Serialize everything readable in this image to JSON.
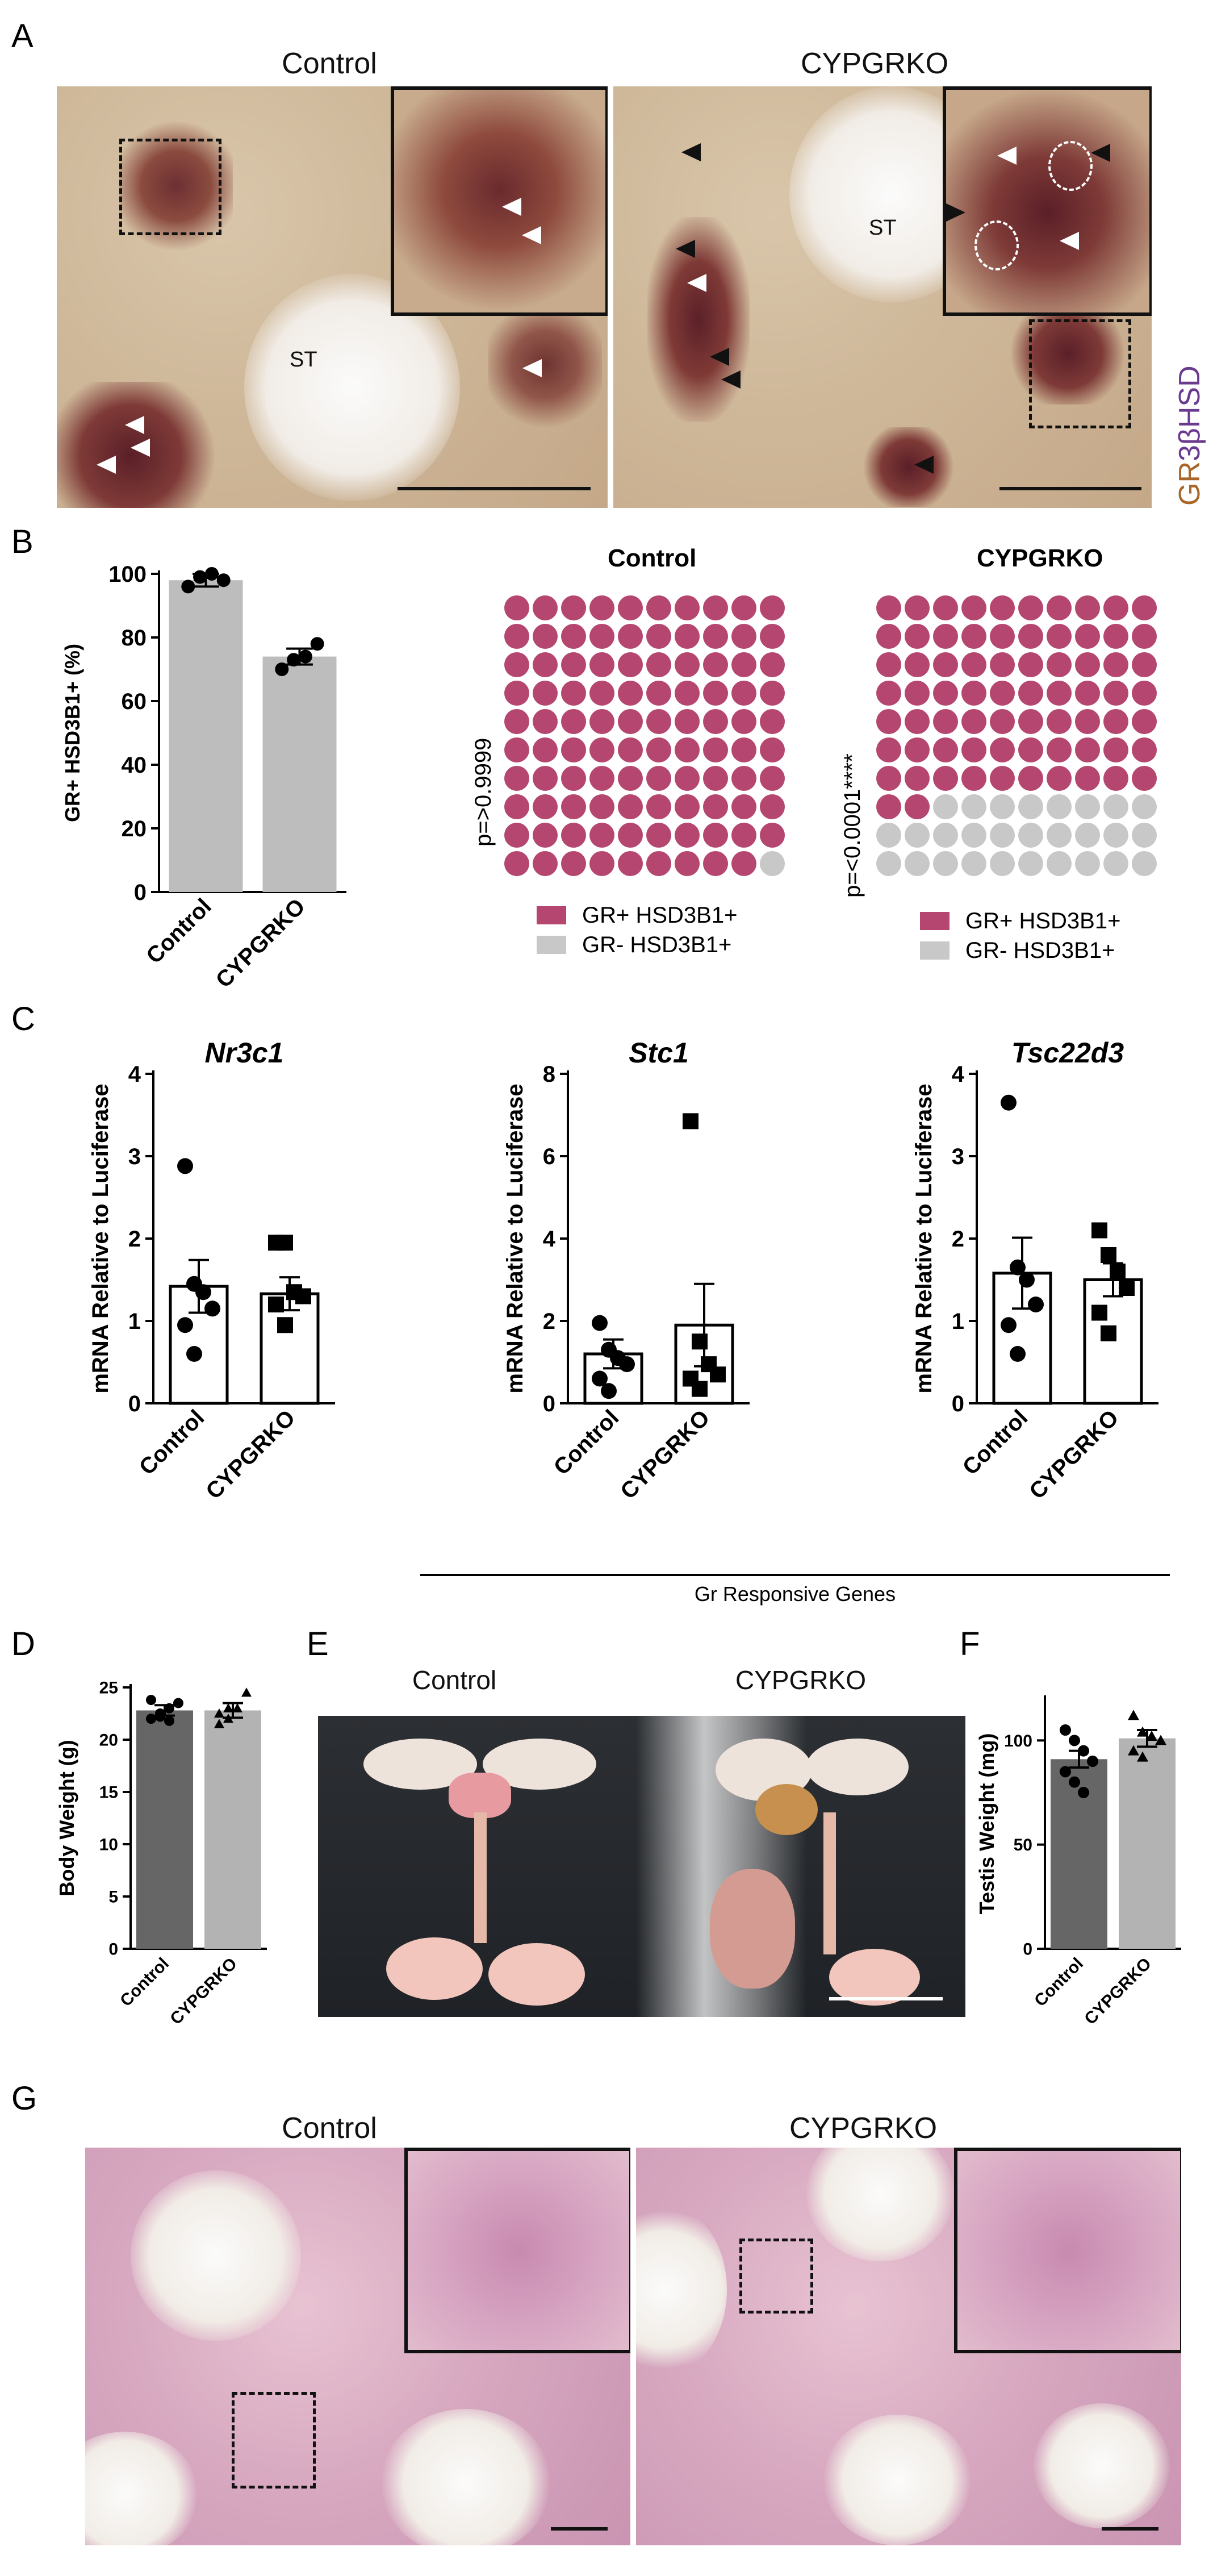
{
  "panels": {
    "a": "A",
    "b": "B",
    "c": "C",
    "d": "D",
    "e": "E",
    "f": "F",
    "g": "G"
  },
  "panel_a": {
    "control_title": "Control",
    "cypgrko_title": "CYPGRKO",
    "st_label": "ST",
    "stain_gr": "GR",
    "stain_hsd": "3βHSD"
  },
  "panel_b": {
    "waffle_control_title": "Control",
    "waffle_cypgrko_title": "CYPGRKO",
    "p_control": "p=>0.9999",
    "p_cypgrko": "p=<0.0001****",
    "legend_pos": "GR+ HSD3B1+",
    "legend_neg": "GR- HSD3B1+",
    "waffle_control_positive": 99,
    "waffle_cypgrko_positive": 72,
    "color_pos": "#b5466f",
    "color_neg": "#c8c8c8"
  },
  "panel_c": {
    "group_label": "Gr Responsive Genes"
  },
  "panel_e": {
    "control_title": "Control",
    "cypgrko_title": "CYPGRKO"
  },
  "panel_g": {
    "control_title": "Control",
    "cypgrko_title": "CYPGRKO"
  },
  "chart_data": [
    {
      "id": "B",
      "type": "bar",
      "categories": [
        "Control",
        "CYPGRKO"
      ],
      "values": [
        98,
        74
      ],
      "errors": [
        2,
        2.5
      ],
      "points": [
        [
          96,
          99,
          100,
          98
        ],
        [
          70,
          73,
          74,
          78
        ]
      ],
      "ylabel": "GR+ HSD3B1+ (%)",
      "ylim": [
        0,
        100
      ],
      "yticks": [
        0,
        20,
        40,
        60,
        80,
        100
      ],
      "bar_color": "#bdbdbd"
    },
    {
      "id": "C1",
      "type": "bar",
      "title": "Nr3c1",
      "categories": [
        "Control",
        "CYPGRKO"
      ],
      "values": [
        1.42,
        1.33
      ],
      "errors": [
        0.32,
        0.2
      ],
      "points": [
        [
          2.88,
          1.45,
          1.35,
          1.15,
          0.95,
          0.6
        ],
        [
          1.95,
          1.95,
          1.35,
          1.3,
          1.2,
          0.95
        ]
      ],
      "ylabel": "mRNA Relative to Luciferase",
      "ylim": [
        0,
        4
      ],
      "yticks": [
        0,
        1,
        2,
        3,
        4
      ]
    },
    {
      "id": "C2",
      "type": "bar",
      "title": "Stc1",
      "categories": [
        "Control",
        "CYPGRKO"
      ],
      "values": [
        1.2,
        1.9
      ],
      "errors": [
        0.35,
        1.0
      ],
      "points": [
        [
          1.95,
          1.3,
          1.1,
          0.95,
          0.6,
          0.3
        ],
        [
          6.85,
          1.5,
          0.95,
          0.7,
          0.6,
          0.35
        ]
      ],
      "ylabel": "mRNA Relative to Luciferase",
      "ylim": [
        0,
        8
      ],
      "yticks": [
        0,
        2,
        4,
        6,
        8
      ]
    },
    {
      "id": "C3",
      "type": "bar",
      "title": "Tsc22d3",
      "categories": [
        "Control",
        "CYPGRKO"
      ],
      "values": [
        1.58,
        1.5
      ],
      "errors": [
        0.43,
        0.2
      ],
      "points": [
        [
          3.65,
          1.65,
          1.5,
          1.2,
          0.95,
          0.6
        ],
        [
          2.1,
          1.8,
          1.6,
          1.4,
          1.1,
          0.85
        ]
      ],
      "ylabel": "mRNA Relative to Luciferase",
      "ylim": [
        0,
        4
      ],
      "yticks": [
        0,
        1,
        2,
        3,
        4
      ]
    },
    {
      "id": "D",
      "type": "bar",
      "categories": [
        "Control",
        "CYPGRKO"
      ],
      "values": [
        22.8,
        22.8
      ],
      "errors": [
        0.5,
        0.7
      ],
      "points": [
        [
          22,
          22.5,
          23,
          23.5,
          23.8,
          22.2,
          21.8
        ],
        [
          21.5,
          22,
          23,
          24.5,
          22.5,
          23
        ]
      ],
      "ylabel": "Body Weight (g)",
      "ylim": [
        0,
        25
      ],
      "yticks": [
        0,
        5,
        10,
        15,
        20,
        25
      ],
      "bar_colors": [
        "#666666",
        "#b3b3b3"
      ]
    },
    {
      "id": "F",
      "type": "bar",
      "categories": [
        "Control",
        "CYPGRKO"
      ],
      "values": [
        91,
        101
      ],
      "errors": [
        4,
        4
      ],
      "points": [
        [
          105,
          100,
          95,
          90,
          85,
          80,
          75
        ],
        [
          112,
          104,
          102,
          100,
          95,
          92
        ]
      ],
      "ylabel": "Testis Weight (mg)",
      "ylim": [
        0,
        120
      ],
      "yticks": [
        0,
        50,
        100
      ],
      "bar_colors": [
        "#666666",
        "#b3b3b3"
      ]
    }
  ]
}
